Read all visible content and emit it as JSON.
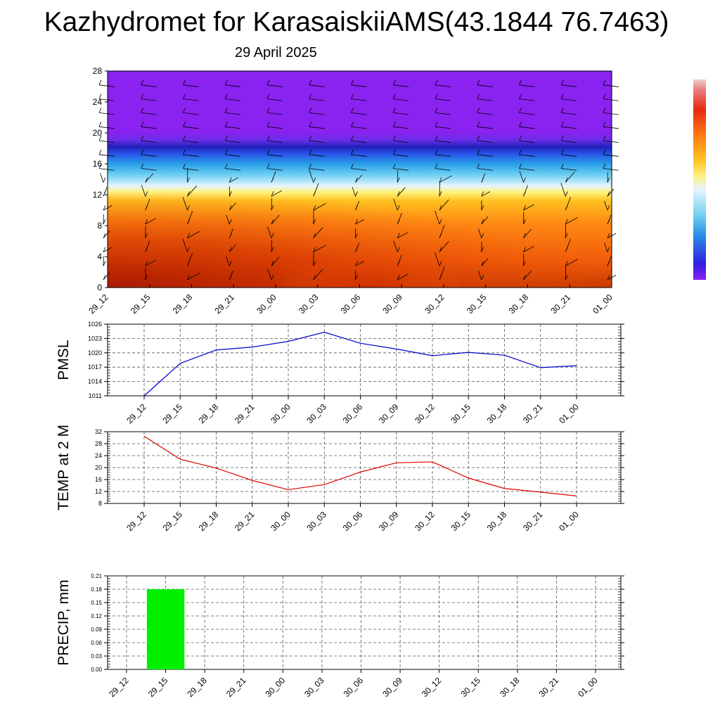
{
  "title": "Kazhydromet for KarasaiskiiAMS(43.1844 76.7463)",
  "subtitle": "29 April 2025",
  "colors": {
    "pmsl_line": "#0000cc",
    "temp_line": "#e00000",
    "precip_bar": "#00f000",
    "cross_top": "#8a22f0",
    "cross_bottom": "#c83a00"
  },
  "chart_data": [
    {
      "type": "heatmap",
      "name": "wind-cross-section",
      "categories": [
        "29_12",
        "29_15",
        "29_18",
        "29_21",
        "30_00",
        "30_03",
        "30_06",
        "30_09",
        "30_12",
        "30_15",
        "30_18",
        "30_21",
        "01_00"
      ],
      "y_ticks": [
        "0",
        "4",
        "8",
        "12",
        "16",
        "20",
        "24",
        "28"
      ],
      "ylim": [
        0,
        28
      ],
      "colorbar": "violet-blue-cyan-yellow-orange-red",
      "overlay": "wind barbs"
    },
    {
      "type": "line",
      "categories": [
        "29_12",
        "29_15",
        "29_18",
        "29_21",
        "30_00",
        "30_03",
        "30_06",
        "30_09",
        "30_12",
        "30_15",
        "30_18",
        "30_21",
        "01_00"
      ],
      "values": [
        1011.0,
        1017.8,
        1020.6,
        1021.2,
        1022.4,
        1024.3,
        1022.0,
        1020.8,
        1019.4,
        1020.1,
        1019.5,
        1016.9,
        1017.3
      ],
      "ylabel": "PMSL",
      "y_ticks": [
        "1011",
        "1014",
        "1017",
        "1020",
        "1023",
        "1026"
      ],
      "ylim": [
        1011,
        1026
      ]
    },
    {
      "type": "line",
      "categories": [
        "29_12",
        "29_15",
        "29_18",
        "29_21",
        "30_00",
        "30_03",
        "30_06",
        "30_09",
        "30_12",
        "30_15",
        "30_18",
        "30_21",
        "01_00"
      ],
      "values": [
        30.5,
        22.8,
        19.8,
        15.7,
        12.6,
        14.3,
        18.5,
        21.6,
        21.9,
        16.5,
        13.0,
        11.8,
        10.5
      ],
      "ylabel": "TEMP at 2 M",
      "y_ticks": [
        "8",
        "12",
        "16",
        "20",
        "24",
        "28",
        "32"
      ],
      "ylim": [
        8,
        32
      ]
    },
    {
      "type": "bar",
      "categories": [
        "29_12",
        "29_15",
        "29_18",
        "29_21",
        "30_00",
        "30_03",
        "30_06",
        "30_09",
        "30_12",
        "30_15",
        "30_18",
        "30_21",
        "01_00"
      ],
      "values": [
        0.18,
        0,
        0,
        0,
        0,
        0,
        0,
        0,
        0,
        0,
        0,
        0,
        0
      ],
      "ylabel": "PRECIP, mm",
      "y_ticks": [
        "0.00",
        "0.03",
        "0.06",
        "0.09",
        "0.12",
        "0.15",
        "0.18",
        "0.21"
      ],
      "ylim": [
        0,
        0.21
      ]
    }
  ]
}
